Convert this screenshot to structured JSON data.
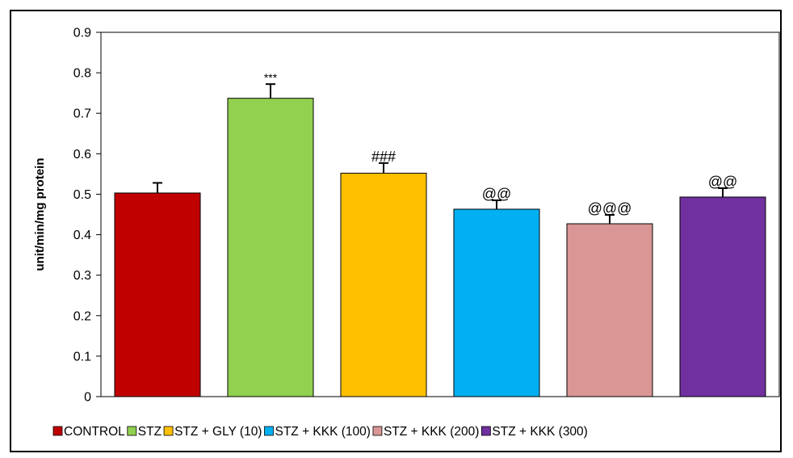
{
  "chart_data": {
    "type": "bar",
    "title": "",
    "xlabel": "",
    "ylabel": "unit/min/mg protein",
    "ylim": [
      0,
      0.9
    ],
    "yticks": [
      "0",
      "0.1",
      "0.2",
      "0.3",
      "0.4",
      "0.5",
      "0.6",
      "0.7",
      "0.8",
      "0.9"
    ],
    "grid": false,
    "legend_position": "bottom",
    "categories": [
      "CONTROL",
      "STZ",
      "STZ + GLY (10)",
      "STZ + KKK (100)",
      "STZ + KKK (200)",
      "STZ + KKK (300)"
    ],
    "values": [
      0.503,
      0.737,
      0.552,
      0.463,
      0.427,
      0.493
    ],
    "error_plus": [
      0.025,
      0.035,
      0.025,
      0.022,
      0.022,
      0.022
    ],
    "colors": [
      "#C00000",
      "#92D050",
      "#FFC000",
      "#00B0F0",
      "#D99694",
      "#7030A0"
    ],
    "annotations": [
      "",
      "***",
      "###",
      "@@",
      "@@@",
      "@@"
    ]
  }
}
